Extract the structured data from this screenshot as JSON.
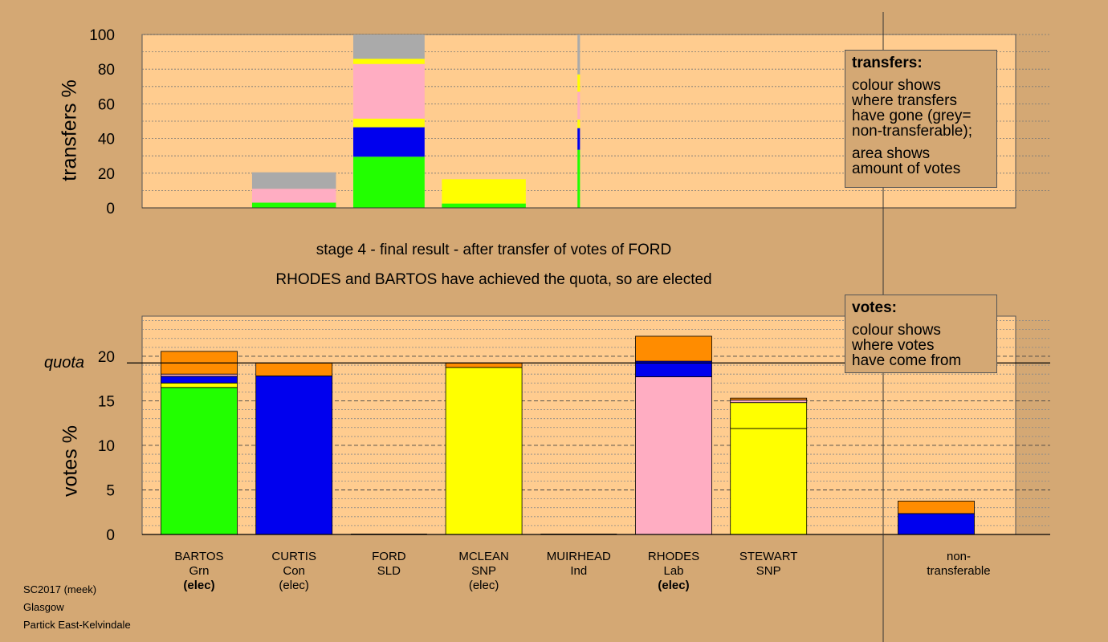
{
  "stage": {
    "title": "stage 4 - final result - after transfer of votes of FORD",
    "subtitle": "RHODES and BARTOS have achieved the quota, so are elected"
  },
  "colors": {
    "plot_bg": "#ffcc8f",
    "page_bg": "#d4a874",
    "Grn": "#22ff00",
    "Con": "#0000ee",
    "SNP": "#ffff00",
    "Lab": "#ffadc2",
    "Ind": "#ff8c00",
    "nontransferable": "#aaaaaa"
  },
  "legend_transfers": {
    "title": "transfers:",
    "line1": "colour shows",
    "line2": "where transfers",
    "line3": "have gone (grey=",
    "line4": "non-transferable);",
    "line5": "area shows",
    "line6": "amount of votes"
  },
  "legend_votes": {
    "title": "votes:",
    "line1": "colour shows",
    "line2": "where votes",
    "line3": "have come from"
  },
  "quota_label": "quota",
  "footer": {
    "line1": "SC2017 (meek)",
    "line2": "Glasgow",
    "line3": "Partick East-Kelvindale"
  },
  "candidates": [
    {
      "name": "BARTOS",
      "party": "Grn",
      "status": "(elec)",
      "status_bold": true
    },
    {
      "name": "CURTIS",
      "party": "Con",
      "status": "(elec)",
      "status_bold": false
    },
    {
      "name": "FORD",
      "party": "SLD",
      "status": "",
      "status_bold": false
    },
    {
      "name": "MCLEAN",
      "party": "SNP",
      "status": "(elec)",
      "status_bold": false
    },
    {
      "name": "MUIRHEAD",
      "party": "Ind",
      "status": "",
      "status_bold": false
    },
    {
      "name": "RHODES",
      "party": "Lab",
      "status": "(elec)",
      "status_bold": true
    },
    {
      "name": "STEWART",
      "party": "SNP",
      "status": "",
      "status_bold": false
    },
    {
      "name": "non-",
      "party": "transferable",
      "status": "",
      "status_bold": false
    }
  ],
  "chart_data": [
    {
      "type": "bar",
      "ylabel": "transfers %",
      "ylim": [
        0,
        100
      ],
      "yticks": [
        0,
        20,
        40,
        60,
        80,
        100
      ],
      "categories": [
        "BARTOS",
        "CURTIS",
        "FORD",
        "MCLEAN",
        "MUIRHEAD",
        "RHODES",
        "STEWART"
      ],
      "bars": [
        {
          "category": "CURTIS",
          "relative_width": 1.0,
          "segments": [
            {
              "color": "Grn",
              "value": 3
            },
            {
              "color": "Lab",
              "value": 8
            },
            {
              "color": "nontransferable",
              "value": 9.5
            }
          ]
        },
        {
          "category": "FORD",
          "relative_width": 0.85,
          "segments": [
            {
              "color": "Grn",
              "value": 29.5
            },
            {
              "color": "Con",
              "value": 17
            },
            {
              "color": "SNP",
              "value": 5
            },
            {
              "color": "Lab",
              "value": 31.5
            },
            {
              "color": "SNP",
              "value": 3
            },
            {
              "color": "nontransferable",
              "value": 14
            }
          ]
        },
        {
          "category": "MCLEAN",
          "relative_width": 1.0,
          "segments": [
            {
              "color": "Grn",
              "value": 2.5
            },
            {
              "color": "SNP",
              "value": 14
            }
          ]
        },
        {
          "category": "MUIRHEAD",
          "relative_width": 0.03,
          "segments": [
            {
              "color": "Grn",
              "value": 33.5
            },
            {
              "color": "Con",
              "value": 12.5
            },
            {
              "color": "SNP",
              "value": 5
            },
            {
              "color": "Lab",
              "value": 16
            },
            {
              "color": "SNP",
              "value": 10
            },
            {
              "color": "nontransferable",
              "value": 23
            }
          ]
        }
      ],
      "legend_position": "right"
    },
    {
      "type": "bar",
      "ylabel": "votes %",
      "ylim": [
        0,
        24.5
      ],
      "yticks": [
        0,
        5,
        10,
        15,
        20
      ],
      "quota": 19.25,
      "categories": [
        "BARTOS",
        "CURTIS",
        "FORD",
        "MCLEAN",
        "MUIRHEAD",
        "RHODES",
        "STEWART",
        "non-transferable"
      ],
      "bars": [
        {
          "category": "BARTOS",
          "segments": [
            {
              "color": "Grn",
              "value": 16.5
            },
            {
              "color": "SNP",
              "value": 0.5
            },
            {
              "color": "Con",
              "value": 0.75
            },
            {
              "color": "Lab",
              "value": 0.25
            },
            {
              "color": "Ind",
              "value": 2.55
            }
          ]
        },
        {
          "category": "CURTIS",
          "segments": [
            {
              "color": "Con",
              "value": 17.8
            },
            {
              "color": "Ind",
              "value": 1.45
            }
          ]
        },
        {
          "category": "FORD",
          "segments": []
        },
        {
          "category": "MCLEAN",
          "segments": [
            {
              "color": "SNP",
              "value": 18.75
            },
            {
              "color": "Ind",
              "value": 0.5
            }
          ]
        },
        {
          "category": "MUIRHEAD",
          "segments": []
        },
        {
          "category": "RHODES",
          "segments": [
            {
              "color": "Lab",
              "value": 17.7
            },
            {
              "color": "Con",
              "value": 1.75
            },
            {
              "color": "Ind",
              "value": 2.8
            }
          ]
        },
        {
          "category": "STEWART",
          "segments": [
            {
              "color": "SNP",
              "value": 11.9
            },
            {
              "color": "SNP",
              "value": 2.9
            },
            {
              "color": "Lab",
              "value": 0.3
            },
            {
              "color": "Ind",
              "value": 0.2
            }
          ]
        },
        {
          "category": "non-transferable",
          "segments": [
            {
              "color": "Con",
              "value": 2.35
            },
            {
              "color": "Ind",
              "value": 1.4
            }
          ]
        }
      ],
      "legend_position": "right"
    }
  ]
}
